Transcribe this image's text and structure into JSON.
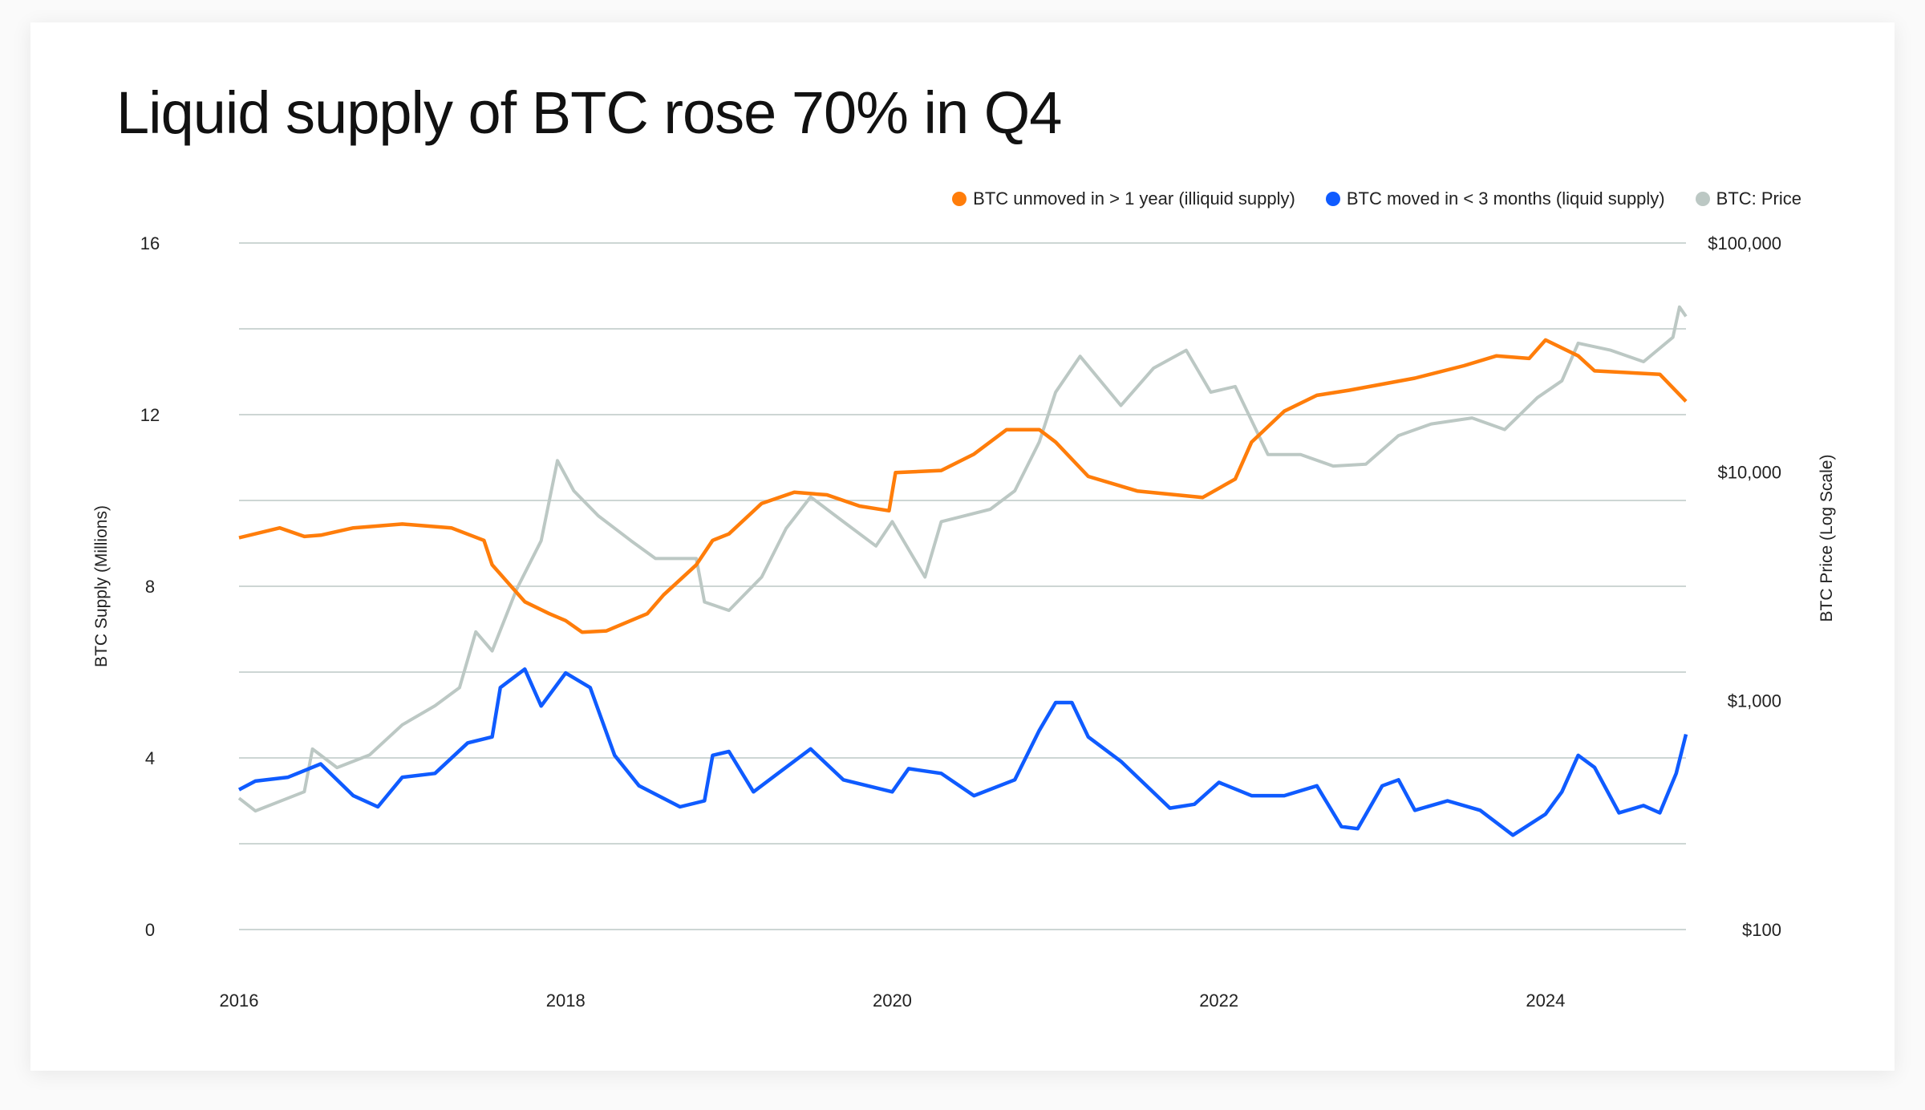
{
  "title": "Liquid supply of BTC rose 70% in Q4",
  "colors": {
    "illiquid": "#ff7d0a",
    "liquid": "#0f5bff",
    "price": "#bcc8c4",
    "grid": "#cdd6d4"
  },
  "chart_data": {
    "type": "line",
    "title": "Liquid supply of BTC rose 70% in Q4",
    "xlabel": "",
    "ylabel": "BTC Supply (Millions)",
    "y2label": "BTC Price (Log Scale)",
    "xlim": [
      2016,
      2024.86
    ],
    "ylim": [
      0,
      16
    ],
    "y2lim": [
      100,
      100000
    ],
    "y2scale": "log",
    "grid": true,
    "legend_position": "top-right",
    "x_ticks": [
      {
        "v": 2016,
        "label": "2016"
      },
      {
        "v": 2018,
        "label": "2018"
      },
      {
        "v": 2020,
        "label": "2020"
      },
      {
        "v": 2022,
        "label": "2022"
      },
      {
        "v": 2024,
        "label": "2024"
      }
    ],
    "y_ticks": [
      {
        "v": 0,
        "label": "0"
      },
      {
        "v": 4,
        "label": "4"
      },
      {
        "v": 8,
        "label": "8"
      },
      {
        "v": 12,
        "label": "12"
      },
      {
        "v": 16,
        "label": "16"
      }
    ],
    "y_gridlines": [
      0,
      2,
      4,
      6,
      8,
      10,
      12,
      14,
      16
    ],
    "y2_ticks": [
      {
        "v": 100,
        "label": "$100"
      },
      {
        "v": 1000,
        "label": "$1,000"
      },
      {
        "v": 10000,
        "label": "$10,000"
      },
      {
        "v": 100000,
        "label": "$100,000"
      }
    ],
    "series": [
      {
        "name": "BTC: Price",
        "axis": "right",
        "color": "#bcc8c4",
        "x": [
          2016.0,
          2016.1,
          2016.4,
          2016.45,
          2016.6,
          2016.8,
          2017.0,
          2017.2,
          2017.35,
          2017.45,
          2017.55,
          2017.7,
          2017.85,
          2017.95,
          2018.05,
          2018.2,
          2018.4,
          2018.55,
          2018.8,
          2018.85,
          2019.0,
          2019.2,
          2019.35,
          2019.5,
          2019.7,
          2019.9,
          2020.0,
          2020.2,
          2020.3,
          2020.6,
          2020.75,
          2020.9,
          2021.0,
          2021.15,
          2021.4,
          2021.6,
          2021.8,
          2021.95,
          2022.1,
          2022.3,
          2022.5,
          2022.7,
          2022.9,
          2023.1,
          2023.3,
          2023.55,
          2023.75,
          2023.95,
          2024.1,
          2024.2,
          2024.4,
          2024.6,
          2024.78,
          2024.82,
          2024.86
        ],
        "y": [
          375,
          330,
          400,
          615,
          510,
          580,
          785,
          950,
          1140,
          2000,
          1650,
          3070,
          5000,
          11200,
          8260,
          6430,
          5000,
          4180,
          4180,
          2700,
          2480,
          3470,
          5660,
          7770,
          6060,
          4740,
          6060,
          3470,
          6060,
          6860,
          8260,
          13500,
          22300,
          32000,
          19500,
          28400,
          34000,
          22300,
          23600,
          11900,
          11900,
          10600,
          10800,
          14400,
          16200,
          17200,
          15300,
          21100,
          25000,
          36500,
          34000,
          30300,
          38700,
          52500,
          47800
        ]
      },
      {
        "name": "BTC unmoved in > 1 year (illiquid supply)",
        "axis": "left",
        "color": "#ff7d0a",
        "x": [
          2016.0,
          2016.25,
          2016.4,
          2016.5,
          2016.7,
          2017.0,
          2017.3,
          2017.5,
          2017.55,
          2017.75,
          2017.9,
          2018.0,
          2018.1,
          2018.25,
          2018.5,
          2018.6,
          2018.8,
          2018.9,
          2019.0,
          2019.2,
          2019.4,
          2019.6,
          2019.8,
          2019.98,
          2020.02,
          2020.3,
          2020.5,
          2020.7,
          2020.9,
          2021.0,
          2021.2,
          2021.5,
          2021.9,
          2022.1,
          2022.2,
          2022.4,
          2022.6,
          2022.8,
          2023.0,
          2023.2,
          2023.5,
          2023.7,
          2023.9,
          2024.0,
          2024.2,
          2024.3,
          2024.7,
          2024.86
        ],
        "y": [
          9.13,
          9.36,
          9.16,
          9.19,
          9.36,
          9.45,
          9.36,
          9.07,
          8.5,
          7.64,
          7.36,
          7.2,
          6.93,
          6.96,
          7.36,
          7.8,
          8.5,
          9.07,
          9.22,
          9.93,
          10.19,
          10.13,
          9.87,
          9.76,
          10.65,
          10.7,
          11.08,
          11.65,
          11.65,
          11.36,
          10.56,
          10.22,
          10.07,
          10.5,
          11.36,
          12.08,
          12.45,
          12.57,
          12.71,
          12.85,
          13.14,
          13.37,
          13.31,
          13.74,
          13.37,
          13.02,
          12.94,
          12.31
        ]
      },
      {
        "name": "BTC moved in < 3 months (liquid supply)",
        "axis": "left",
        "color": "#0f5bff",
        "x": [
          2016.0,
          2016.1,
          2016.3,
          2016.5,
          2016.7,
          2016.85,
          2017.0,
          2017.2,
          2017.4,
          2017.55,
          2017.6,
          2017.75,
          2017.85,
          2018.0,
          2018.15,
          2018.3,
          2018.45,
          2018.7,
          2018.85,
          2018.9,
          2019.0,
          2019.15,
          2019.3,
          2019.5,
          2019.7,
          2019.85,
          2020.0,
          2020.1,
          2020.3,
          2020.5,
          2020.75,
          2020.9,
          2021.0,
          2021.1,
          2021.2,
          2021.4,
          2021.7,
          2021.85,
          2022.0,
          2022.2,
          2022.4,
          2022.6,
          2022.75,
          2022.85,
          2023.0,
          2023.1,
          2023.2,
          2023.4,
          2023.6,
          2023.8,
          2024.0,
          2024.1,
          2024.2,
          2024.3,
          2024.45,
          2024.6,
          2024.7,
          2024.8,
          2024.86
        ],
        "y": [
          3.26,
          3.46,
          3.55,
          3.86,
          3.12,
          2.86,
          3.55,
          3.64,
          4.35,
          4.49,
          5.64,
          6.07,
          5.21,
          5.98,
          5.64,
          4.06,
          3.35,
          2.86,
          3.0,
          4.06,
          4.15,
          3.21,
          3.64,
          4.21,
          3.49,
          3.35,
          3.21,
          3.75,
          3.64,
          3.12,
          3.49,
          4.64,
          5.29,
          5.29,
          4.49,
          3.92,
          2.83,
          2.92,
          3.43,
          3.12,
          3.12,
          3.35,
          2.4,
          2.35,
          3.35,
          3.49,
          2.78,
          3.0,
          2.78,
          2.2,
          2.69,
          3.21,
          4.06,
          3.78,
          2.72,
          2.89,
          2.72,
          3.64,
          4.55
        ]
      }
    ]
  }
}
